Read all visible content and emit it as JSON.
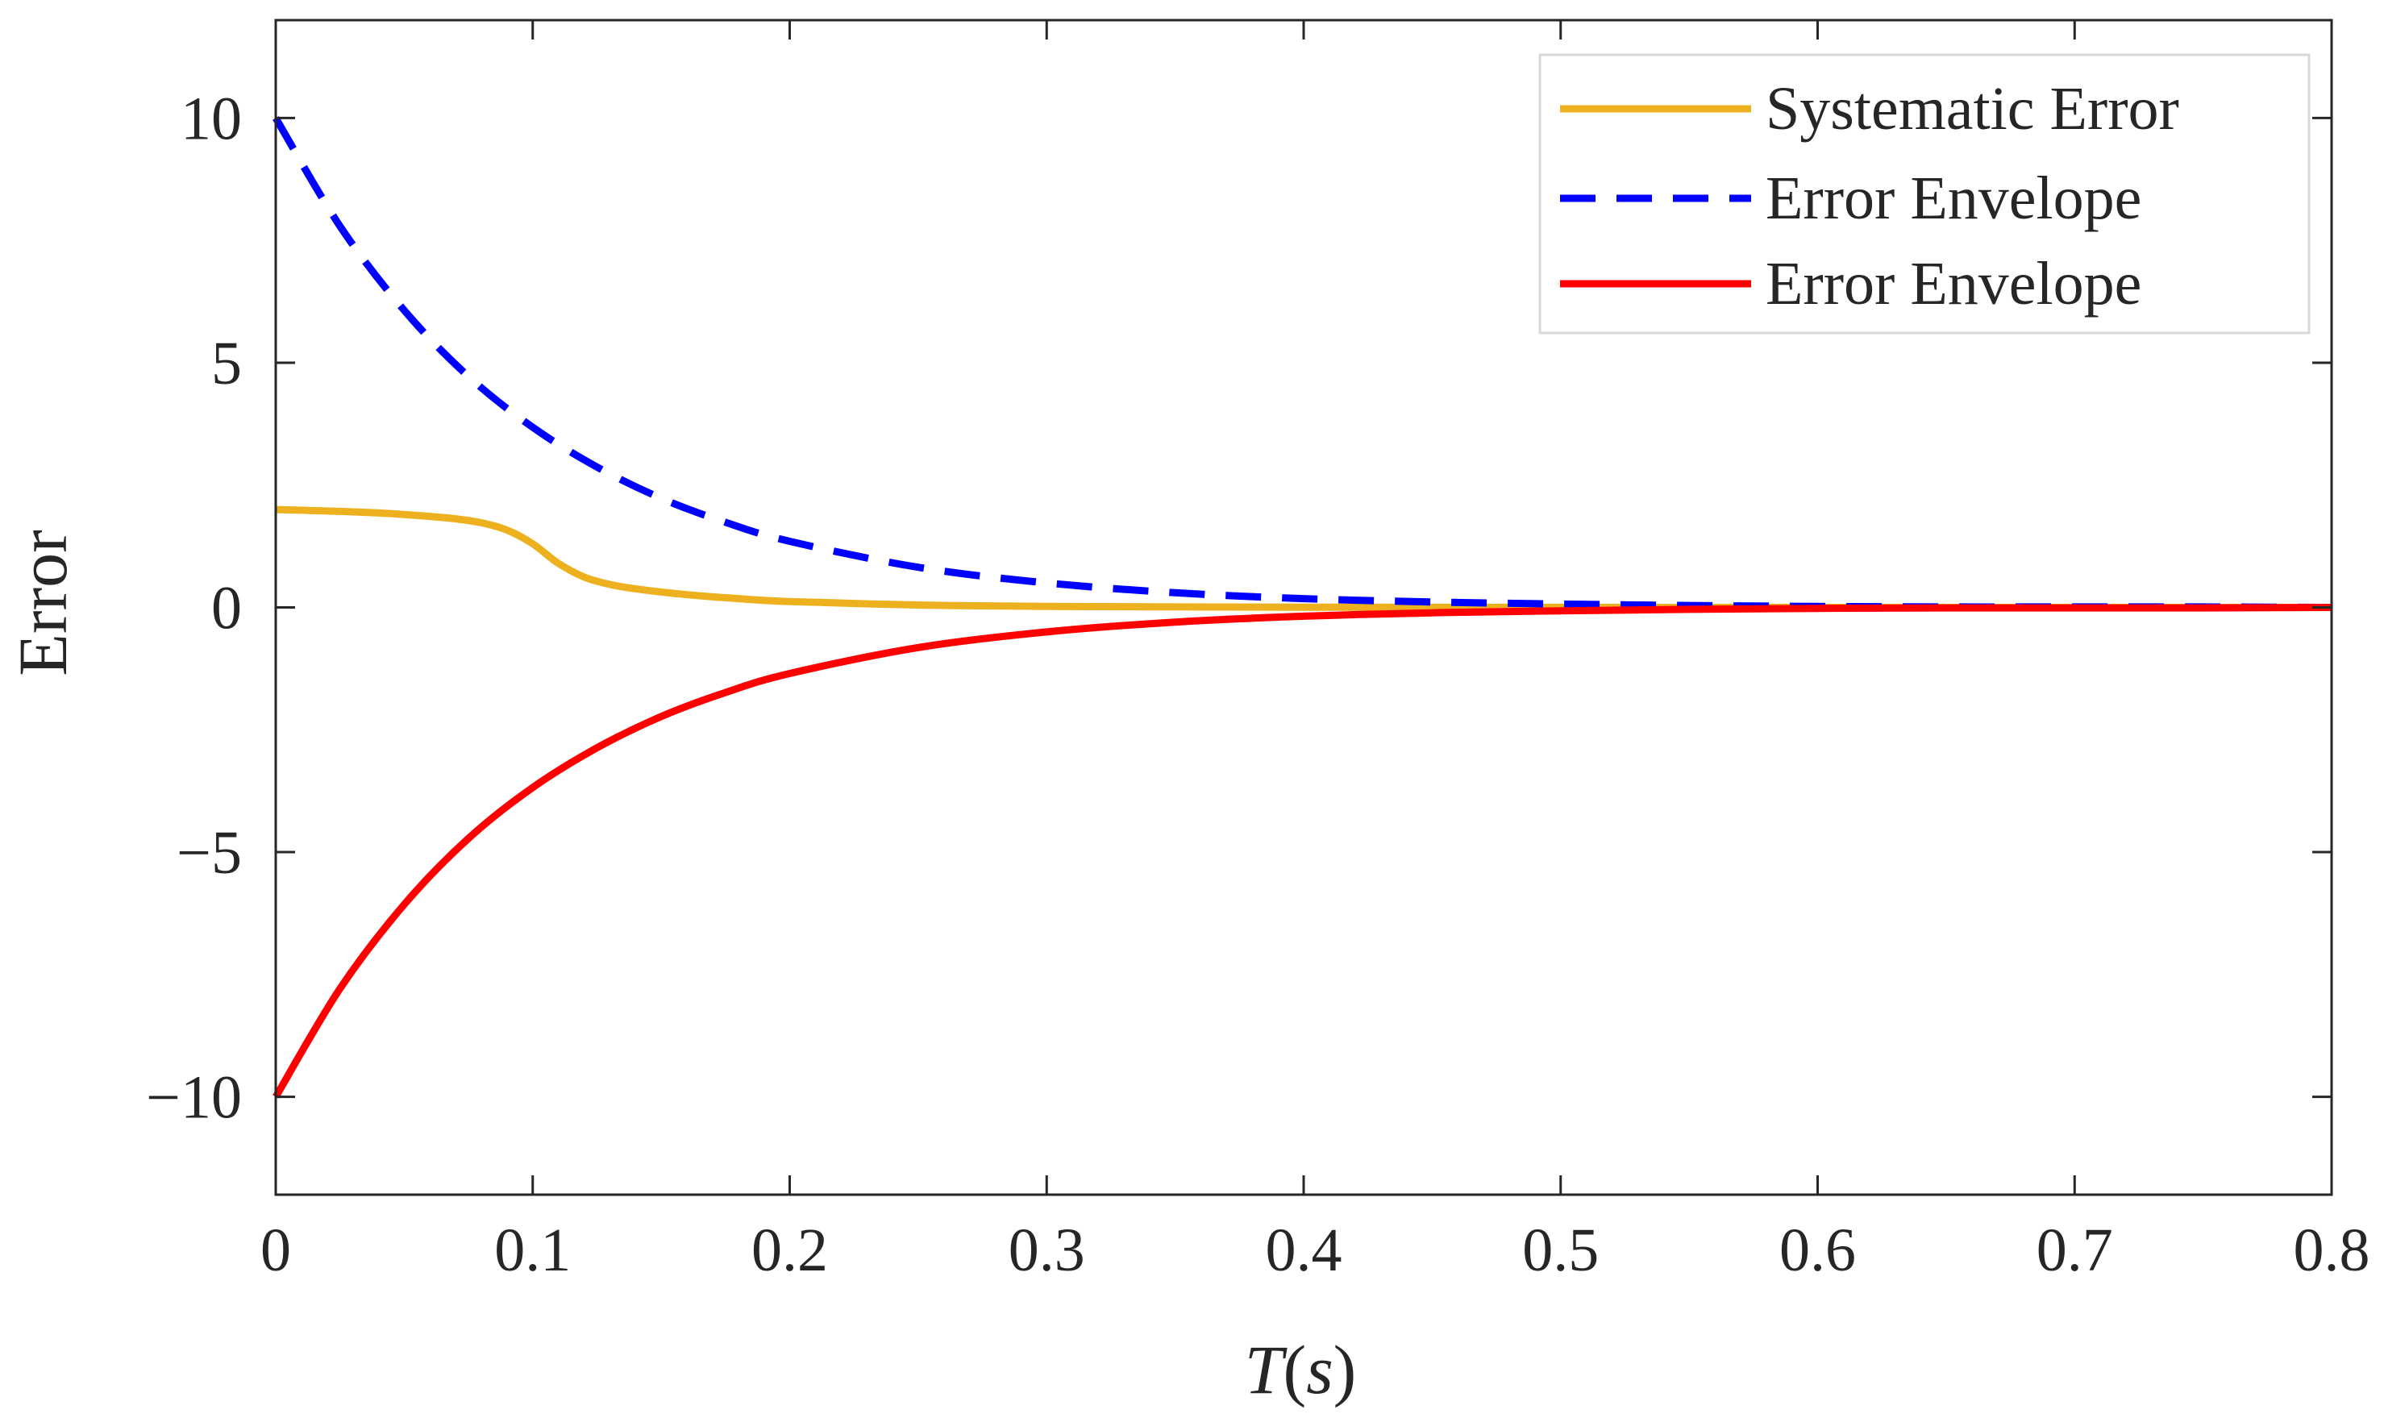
{
  "chart_data": {
    "type": "line",
    "title": "",
    "xlabel_parts": {
      "var": "T",
      "open": "(",
      "unit": "s",
      "close": ")"
    },
    "ylabel": "Error",
    "xlim": [
      0,
      0.8
    ],
    "ylim": [
      -12,
      12
    ],
    "xticks": [
      0,
      0.1,
      0.2,
      0.3,
      0.4,
      0.5,
      0.6,
      0.7,
      0.8
    ],
    "xtick_labels": [
      "0",
      "0.1",
      "0.2",
      "0.3",
      "0.4",
      "0.5",
      "0.6",
      "0.7",
      "0.8"
    ],
    "yticks": [
      10,
      5,
      0,
      -5,
      -10
    ],
    "ytick_labels": [
      "10",
      "5",
      "0",
      "−5",
      "−10"
    ],
    "grid": false,
    "legend_position": "top-right",
    "series": [
      {
        "name": "Systematic Error",
        "color": "#EDB120",
        "dash": "solid",
        "x": [
          0,
          0.02,
          0.04,
          0.06,
          0.07,
          0.08,
          0.09,
          0.1,
          0.11,
          0.12,
          0.13,
          0.14,
          0.16,
          0.18,
          0.2,
          0.25,
          0.3,
          0.4,
          0.5,
          0.6,
          0.7,
          0.8
        ],
        "y": [
          2.0,
          1.97,
          1.93,
          1.86,
          1.81,
          1.73,
          1.58,
          1.3,
          0.9,
          0.62,
          0.47,
          0.38,
          0.26,
          0.18,
          0.12,
          0.05,
          0.02,
          0.005,
          0.001,
          0,
          0,
          0
        ]
      },
      {
        "name": "Error Envelope",
        "color": "#0000FF",
        "dash": "dashed",
        "x": [
          0,
          0.025,
          0.05,
          0.075,
          0.1,
          0.125,
          0.15,
          0.175,
          0.2,
          0.25,
          0.3,
          0.35,
          0.4,
          0.45,
          0.5,
          0.55,
          0.6,
          0.65,
          0.7,
          0.75,
          0.8
        ],
        "y": [
          10.0,
          7.79,
          6.07,
          4.72,
          3.68,
          2.87,
          2.23,
          1.74,
          1.35,
          0.82,
          0.5,
          0.3,
          0.18,
          0.11,
          0.07,
          0.04,
          0.02,
          0.01,
          0.01,
          0.01,
          0.0
        ]
      },
      {
        "name": "Error Envelope",
        "color": "#FF0000",
        "dash": "solid",
        "x": [
          0,
          0.025,
          0.05,
          0.075,
          0.1,
          0.125,
          0.15,
          0.175,
          0.2,
          0.25,
          0.3,
          0.35,
          0.4,
          0.45,
          0.5,
          0.55,
          0.6,
          0.65,
          0.7,
          0.75,
          0.8
        ],
        "y": [
          -10.0,
          -7.79,
          -6.07,
          -4.72,
          -3.68,
          -2.87,
          -2.23,
          -1.74,
          -1.35,
          -0.82,
          -0.5,
          -0.3,
          -0.18,
          -0.11,
          -0.07,
          -0.04,
          -0.02,
          -0.01,
          -0.01,
          -0.01,
          0.0
        ]
      }
    ]
  }
}
